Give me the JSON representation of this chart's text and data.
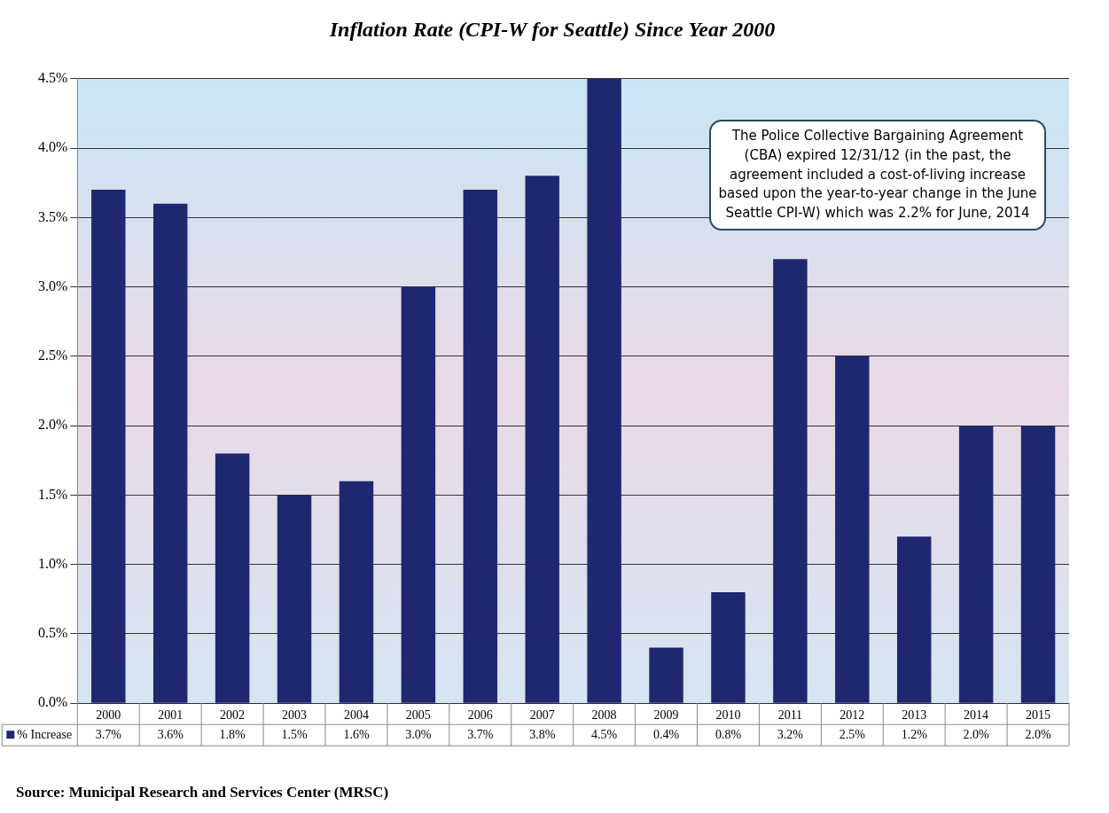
{
  "chart_data": {
    "type": "bar",
    "title": "Inflation Rate (CPI-W for Seattle) Since Year 2000",
    "categories": [
      "2000",
      "2001",
      "2002",
      "2003",
      "2004",
      "2005",
      "2006",
      "2007",
      "2008",
      "2009",
      "2010",
      "2011",
      "2012",
      "2013",
      "2014",
      "2015"
    ],
    "series": [
      {
        "name": "% Increase",
        "color": "#1f2770",
        "values": [
          3.7,
          3.6,
          1.8,
          1.5,
          1.6,
          3.0,
          3.7,
          3.8,
          4.5,
          0.4,
          0.8,
          3.2,
          2.5,
          1.2,
          2.0,
          2.0
        ],
        "value_labels": [
          "3.7%",
          "3.6%",
          "1.8%",
          "1.5%",
          "1.6%",
          "3.0%",
          "3.7%",
          "3.8%",
          "4.5%",
          "0.4%",
          "0.8%",
          "3.2%",
          "2.5%",
          "1.2%",
          "2.0%",
          "2.0%"
        ]
      }
    ],
    "ylim": [
      0,
      4.5
    ],
    "yticks": [
      {
        "value": 0,
        "label": "0.0%"
      },
      {
        "value": 0.5,
        "label": "0.5%"
      },
      {
        "value": 1,
        "label": "1.0%"
      },
      {
        "value": 1.5,
        "label": "1.5%"
      },
      {
        "value": 2,
        "label": "2.0%"
      },
      {
        "value": 2.5,
        "label": "2.5%"
      },
      {
        "value": 3,
        "label": "3.0%"
      },
      {
        "value": 3.5,
        "label": "3.5%"
      },
      {
        "value": 4,
        "label": "4.0%"
      },
      {
        "value": 4.5,
        "label": "4.5%"
      }
    ],
    "grid": "y",
    "legend": "bottom left",
    "annotations": [
      "The Police Collective Bargaining Agreement (CBA) expired 12/31/12 (in the past, the agreement included a cost-of-living increase based upon the year-to-year change in the June Seattle CPI-W)  which was 2.2% for June, 2014",
      "Source: Municipal Research and Services Center (MRSC)"
    ]
  }
}
